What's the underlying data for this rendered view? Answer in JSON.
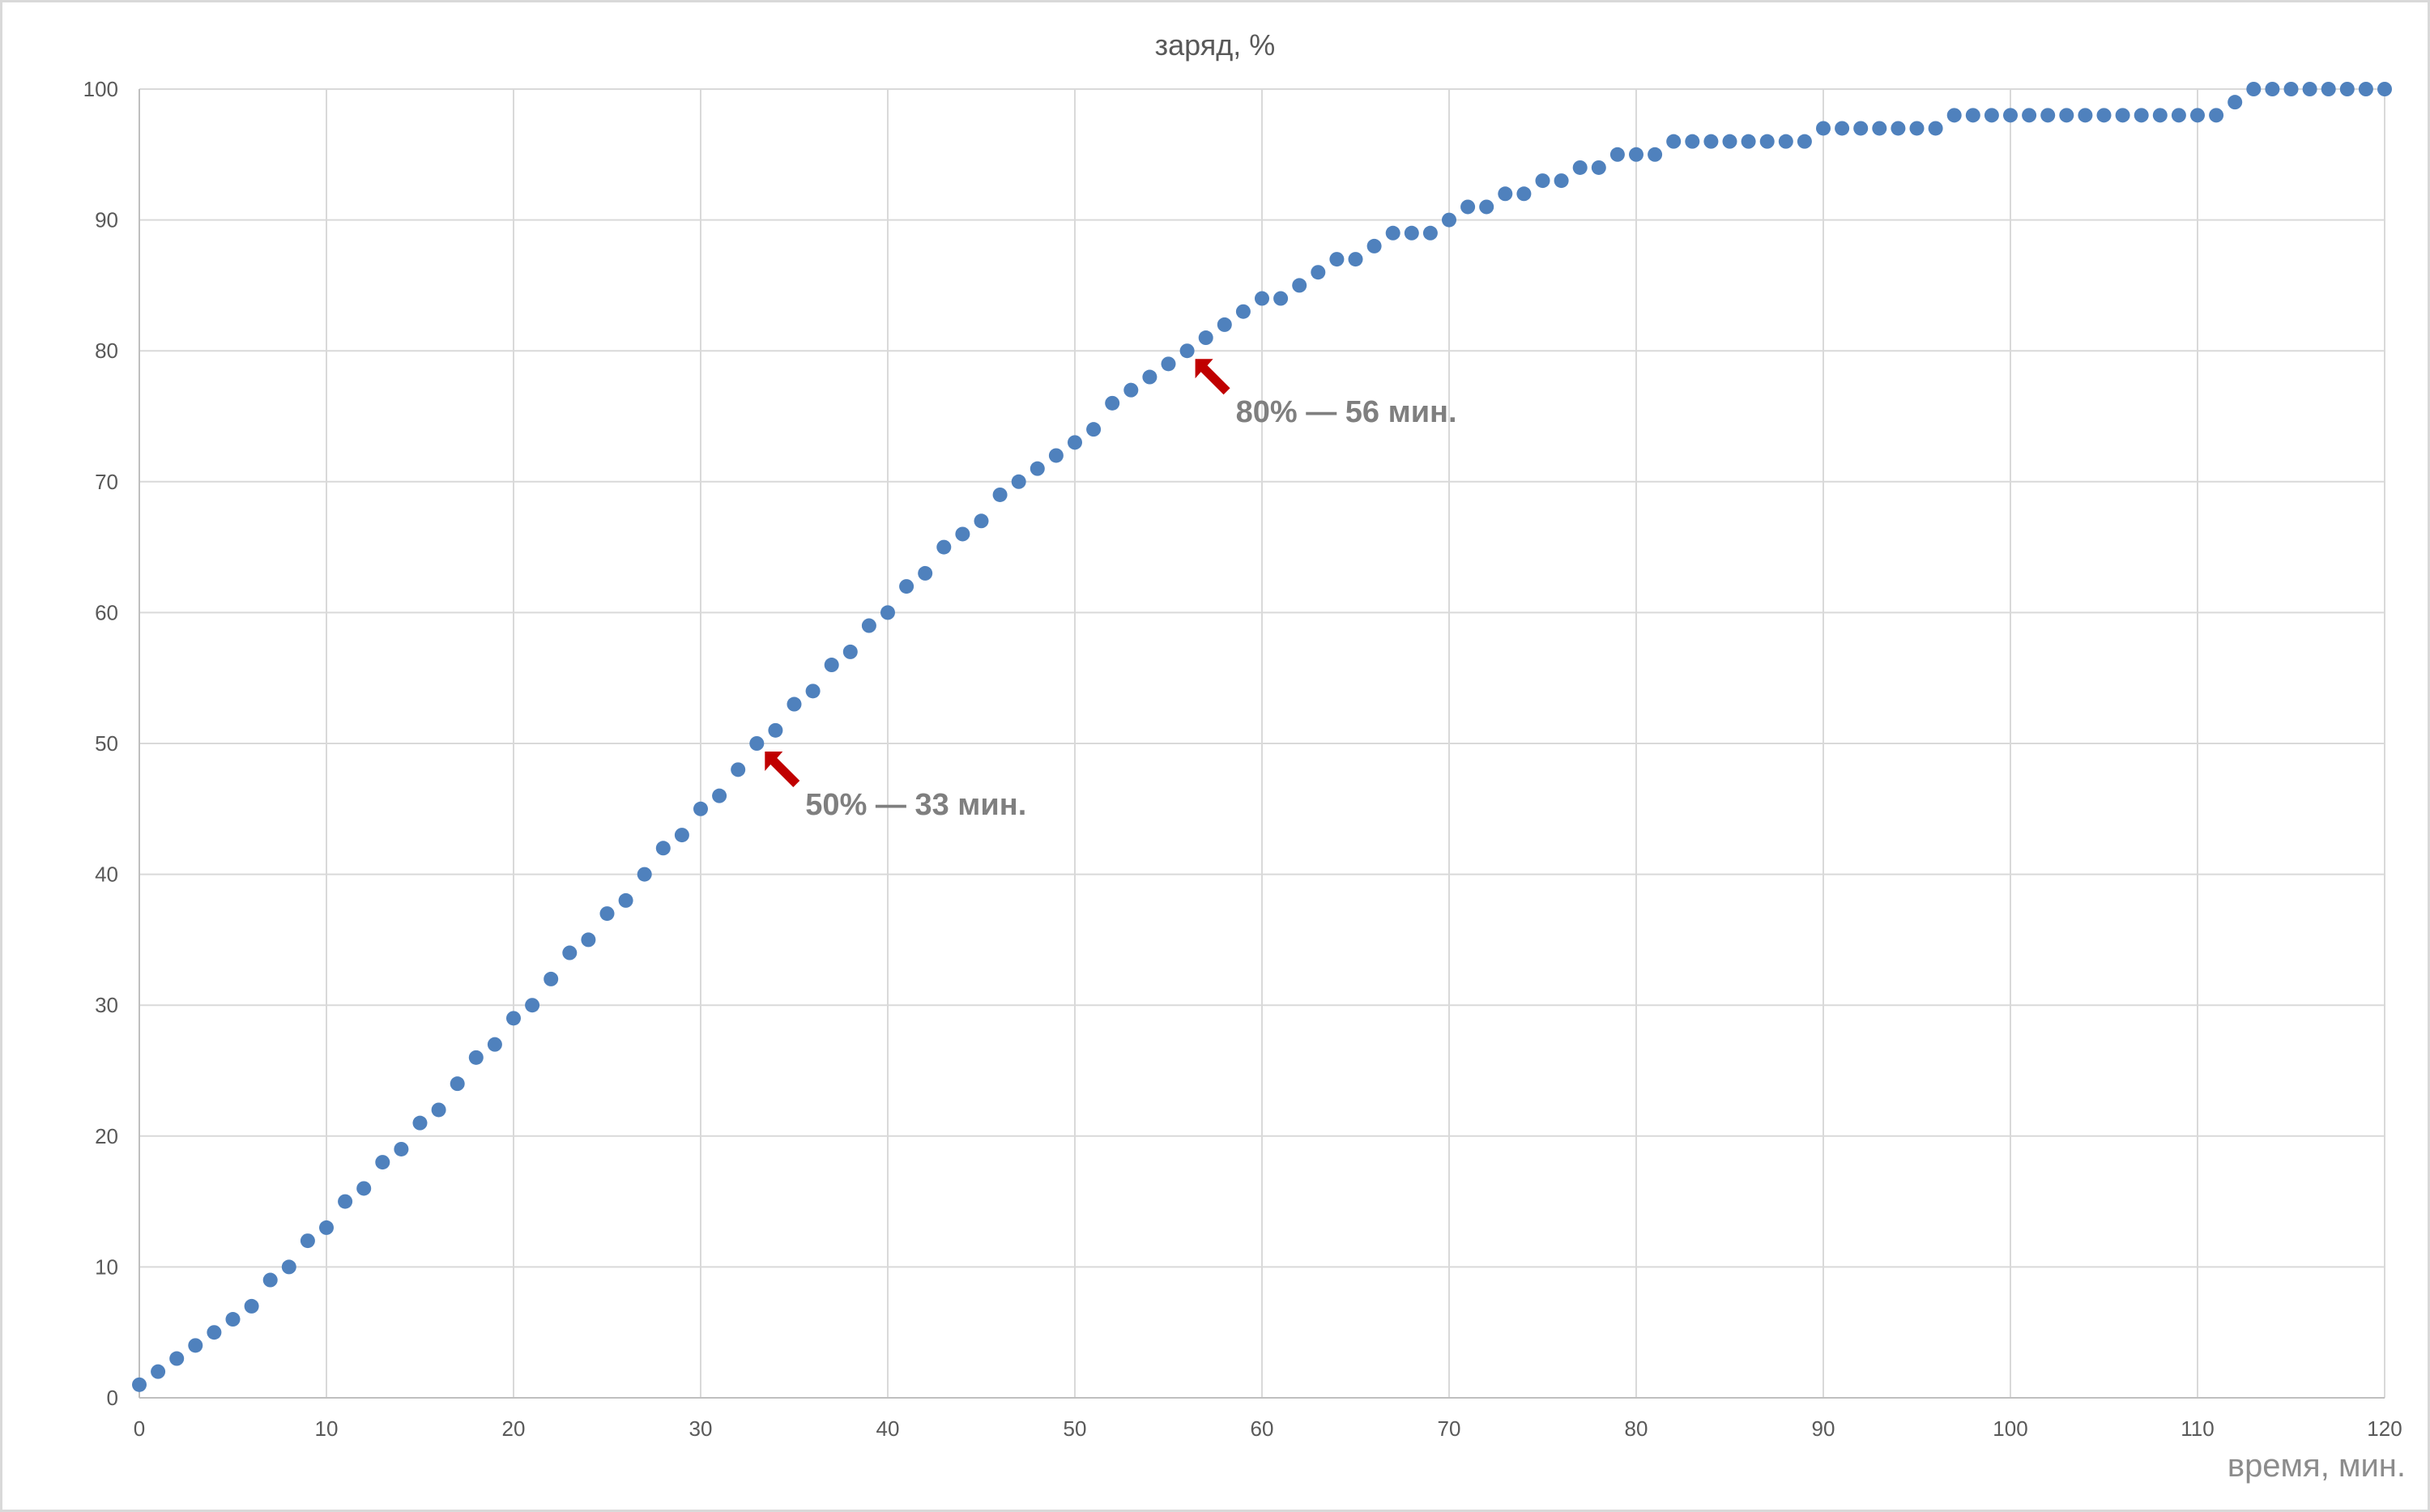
{
  "chart_data": {
    "type": "scatter",
    "title": "заряд, %",
    "xlabel": "время, мин.",
    "ylabel": "",
    "xlim": [
      0,
      120
    ],
    "ylim": [
      0,
      100
    ],
    "x_ticks": [
      0,
      10,
      20,
      30,
      40,
      50,
      60,
      70,
      80,
      90,
      100,
      110,
      120
    ],
    "y_ticks": [
      0,
      10,
      20,
      30,
      40,
      50,
      60,
      70,
      80,
      90,
      100
    ],
    "grid": true,
    "legend": "none",
    "point_color": "#4f81bd",
    "arrow_color": "#c00000",
    "x": [
      0,
      1,
      2,
      3,
      4,
      5,
      6,
      7,
      8,
      9,
      10,
      11,
      12,
      13,
      14,
      15,
      16,
      17,
      18,
      19,
      20,
      21,
      22,
      23,
      24,
      25,
      26,
      27,
      28,
      29,
      30,
      31,
      32,
      33,
      34,
      35,
      36,
      37,
      38,
      39,
      40,
      41,
      42,
      43,
      44,
      45,
      46,
      47,
      48,
      49,
      50,
      51,
      52,
      53,
      54,
      55,
      56,
      57,
      58,
      59,
      60,
      61,
      62,
      63,
      64,
      65,
      66,
      67,
      68,
      69,
      70,
      71,
      72,
      73,
      74,
      75,
      76,
      77,
      78,
      79,
      80,
      81,
      82,
      83,
      84,
      85,
      86,
      87,
      88,
      89,
      90,
      91,
      92,
      93,
      94,
      95,
      96,
      97,
      98,
      99,
      100,
      101,
      102,
      103,
      104,
      105,
      106,
      107,
      108,
      109,
      110,
      111,
      112,
      113,
      114,
      115,
      116,
      117,
      118,
      119,
      120
    ],
    "y": [
      1,
      2,
      3,
      4,
      5,
      6,
      7,
      9,
      10,
      12,
      13,
      15,
      16,
      18,
      19,
      21,
      22,
      24,
      26,
      27,
      29,
      30,
      32,
      34,
      35,
      37,
      38,
      40,
      42,
      43,
      45,
      46,
      48,
      50,
      51,
      53,
      54,
      56,
      57,
      59,
      60,
      62,
      63,
      65,
      66,
      67,
      69,
      70,
      71,
      72,
      73,
      74,
      76,
      77,
      78,
      79,
      80,
      81,
      82,
      83,
      84,
      84,
      85,
      86,
      87,
      87,
      88,
      89,
      89,
      89,
      90,
      91,
      91,
      92,
      92,
      93,
      93,
      94,
      94,
      95,
      95,
      95,
      96,
      96,
      96,
      96,
      96,
      96,
      96,
      96,
      97,
      97,
      97,
      97,
      97,
      97,
      97,
      98,
      98,
      98,
      98,
      98,
      98,
      98,
      98,
      98,
      98,
      98,
      98,
      98,
      98,
      98,
      99,
      100,
      100,
      100,
      100,
      100,
      100,
      100,
      100
    ],
    "annotations": [
      {
        "text": "50% — 33 мин.",
        "x": 33,
        "y": 50
      },
      {
        "text": "80% — 56 мин.",
        "x": 56,
        "y": 80
      }
    ]
  }
}
